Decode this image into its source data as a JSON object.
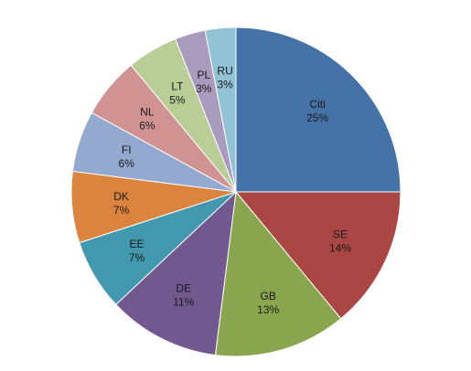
{
  "chart_data": {
    "type": "pie",
    "start": "12 o'clock",
    "direction": "clockwise",
    "slices": [
      {
        "label": "Citi",
        "value": 25,
        "value_label": "25%",
        "color": "#4572a7"
      },
      {
        "label": "SE",
        "value": 14,
        "value_label": "14%",
        "color": "#aa4643"
      },
      {
        "label": "GB",
        "value": 13,
        "value_label": "13%",
        "color": "#89a54e"
      },
      {
        "label": "DE",
        "value": 11,
        "value_label": "11%",
        "color": "#71588f"
      },
      {
        "label": "EE",
        "value": 7,
        "value_label": "7%",
        "color": "#4198af"
      },
      {
        "label": "DK",
        "value": 7,
        "value_label": "7%",
        "color": "#db843d"
      },
      {
        "label": "FI",
        "value": 6,
        "value_label": "6%",
        "color": "#93a9cf"
      },
      {
        "label": "NL",
        "value": 6,
        "value_label": "6%",
        "color": "#d19392"
      },
      {
        "label": "LT",
        "value": 5,
        "value_label": "5%",
        "color": "#b9cd96"
      },
      {
        "label": "PL",
        "value": 3,
        "value_label": "3%",
        "color": "#a99bbd"
      },
      {
        "label": "RU",
        "value": 3,
        "value_label": "3%",
        "color": "#91c3d5"
      }
    ]
  }
}
